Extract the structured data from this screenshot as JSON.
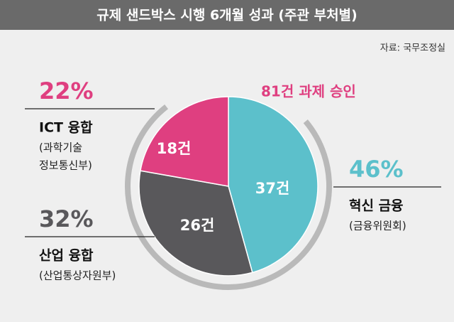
{
  "chart_data": {
    "type": "pie",
    "title": "규제 샌드박스 시행 6개월 성과 (주관 부처별)",
    "source": "자료: 국무조정실",
    "total": 81,
    "total_label": "81건 과제 승인",
    "categories": [
      "혁신 금융",
      "산업 융합",
      "ICT 융합"
    ],
    "ministries": [
      [
        "(금융위원회)"
      ],
      [
        "(산업통상자원부)"
      ],
      [
        "(과학기술",
        "정보통신부)"
      ]
    ],
    "values": [
      37,
      26,
      18
    ],
    "value_labels": [
      "37건",
      "26건",
      "18건"
    ],
    "percents": [
      46,
      32,
      22
    ],
    "percent_labels": [
      "46%",
      "32%",
      "22%"
    ],
    "colors": [
      "#5cc0cb",
      "#59585b",
      "#df3f80"
    ]
  }
}
